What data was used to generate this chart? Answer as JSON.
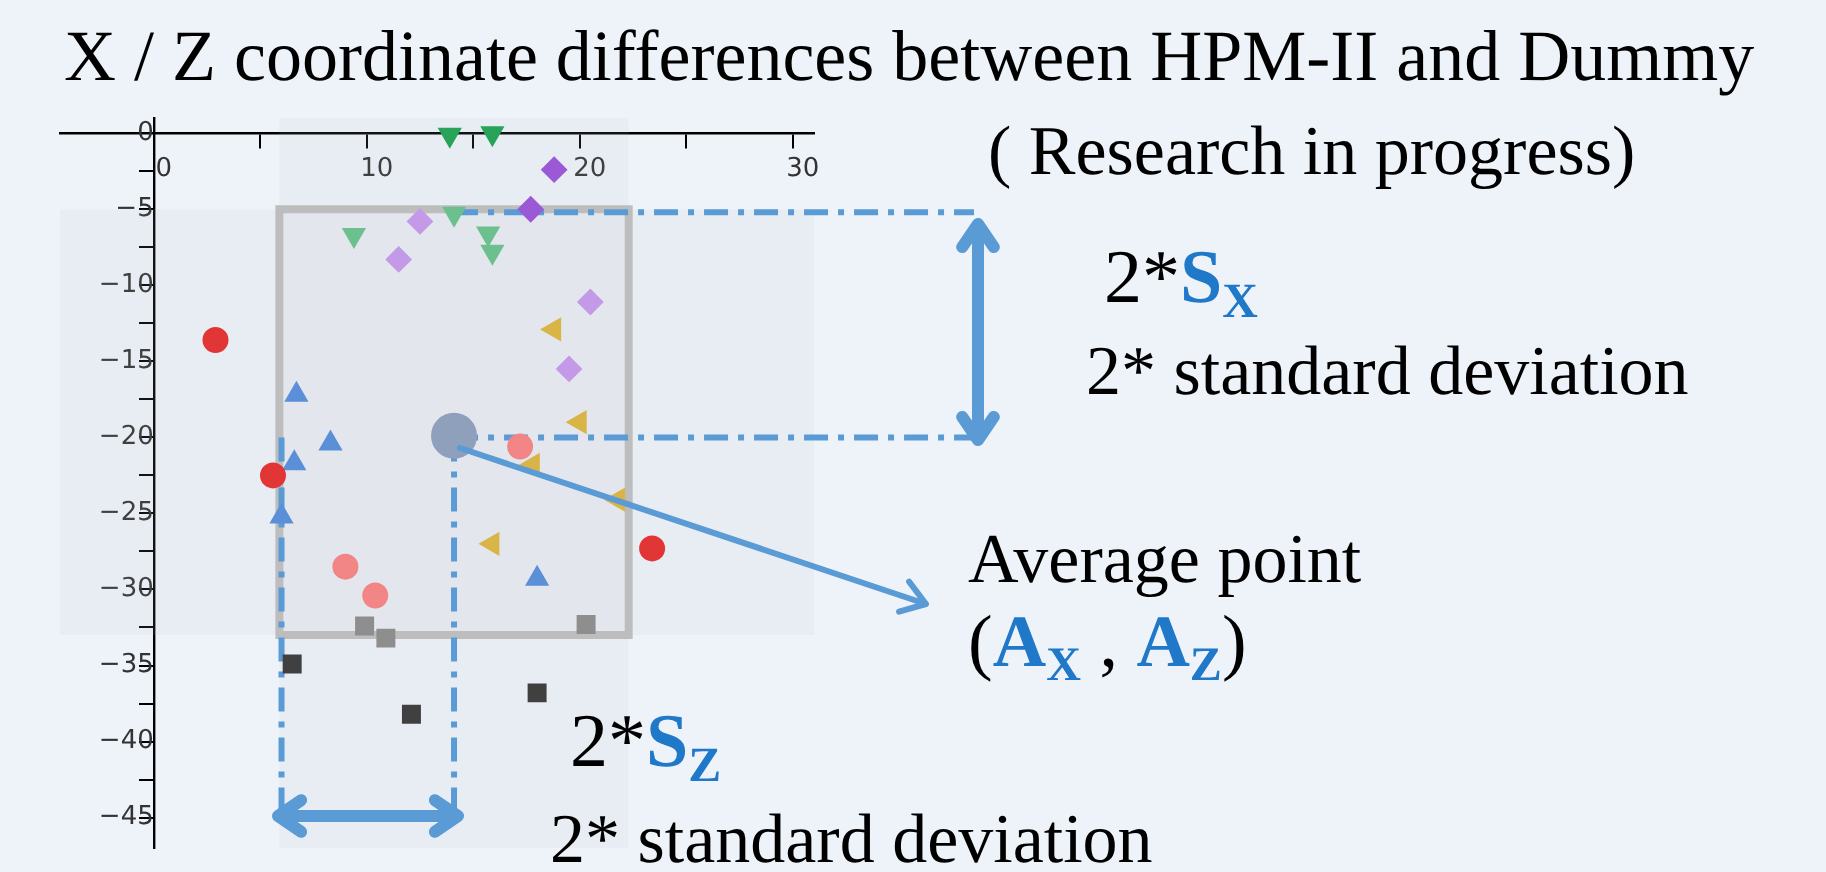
{
  "chart_data": {
    "type": "scatter",
    "title": "X / Z coordinate differences between HPM-II and Dummy",
    "subtitle": "( Research in progress)",
    "annotations": [
      "2*S$_{X}$",
      "2* standard deviation",
      "Average point",
      "(A$_{X}$ , A$_{Z}$)",
      "2*S$_{Z}$",
      "2* standard deviation"
    ],
    "series": [
      {
        "color": "#27a35a",
        "marker": "triangle_down",
        "x": [
          13.9,
          15.9
        ],
        "values": [
          -0.1,
          0
        ]
      },
      {
        "color": "#6cc08e",
        "marker": "triangle_down",
        "x": [
          14.1,
          9.4,
          15.7,
          15.9
        ],
        "values": [
          -5.3,
          -6.7,
          -6.6,
          -7.8
        ]
      },
      {
        "color": "#9b59d6",
        "marker": "diamond",
        "x": [
          18.8,
          17.7
        ],
        "values": [
          -2.4,
          -5.0
        ]
      },
      {
        "color": "#c49ae8",
        "marker": "diamond",
        "x": [
          12.5,
          11.5,
          20.5,
          19.5
        ],
        "values": [
          -5.8,
          -8.3,
          -11.1,
          -15.5
        ]
      },
      {
        "color": "#d9b447",
        "marker": "triangle_left",
        "x": [
          18.8,
          20.0,
          17.8,
          21.8,
          15.9
        ],
        "values": [
          -12.9,
          -19.0,
          -21.8,
          -24.1,
          -27.0
        ]
      },
      {
        "color": "#e23535",
        "marker": "circle",
        "x": [
          2.9,
          5.6,
          23.4
        ],
        "values": [
          -13.6,
          -22.5,
          -27.3
        ]
      },
      {
        "color": "#f28585",
        "marker": "circle",
        "x": [
          17.2,
          9.0,
          10.4
        ],
        "values": [
          -20.6,
          -28.5,
          -30.4
        ]
      },
      {
        "color": "#5b8fd8",
        "marker": "triangle",
        "x": [
          6.7,
          8.3,
          6.7,
          6.6,
          6.0,
          18.0
        ],
        "values": [
          -17.2,
          -20.4,
          null,
          -21.7,
          -25.2,
          -29.3
        ]
      },
      {
        "color": "#8e8e8e",
        "marker": "square",
        "x": [
          9.9,
          10.9,
          20.3
        ],
        "values": [
          -32.4,
          -33.2,
          -32.3
        ]
      },
      {
        "color": "#404040",
        "marker": "square",
        "x": [
          6.5,
          12.1,
          18.0
        ],
        "values": [
          -34.9,
          -38.2,
          -36.8
        ]
      },
      {
        "type": "bubble",
        "color": "#8fa0bc",
        "x": [
          14.1
        ],
        "values": [
          -19.9
        ],
        "sizes": [
          1
        ]
      }
    ],
    "xlim": [
      -4.4,
      31
    ],
    "ylim": [
      -47,
      1
    ],
    "xticks": [
      0,
      {
        "value": 5,
        "label": null
      },
      10,
      {
        "value": 15,
        "label": null
      },
      20,
      {
        "value": 25,
        "label": null
      },
      30
    ],
    "yticks": [
      {
        "value": 0,
        "label": "0"
      },
      {
        "value": -2.5,
        "label": null
      },
      {
        "value": -5,
        "label": "−5"
      },
      {
        "value": -7.5,
        "label": null
      },
      {
        "value": -10,
        "label": "−10"
      },
      {
        "value": -12.5,
        "label": null
      },
      {
        "value": -15,
        "label": "−15"
      },
      {
        "value": -17.5,
        "label": null
      },
      {
        "value": -20,
        "label": "−20"
      },
      {
        "value": -22.5,
        "label": null
      },
      {
        "value": -25,
        "label": "−25"
      },
      {
        "value": -27.5,
        "label": null
      },
      {
        "value": -30,
        "label": "−30"
      },
      {
        "value": -32.5,
        "label": null
      },
      {
        "value": -35,
        "label": "−35"
      },
      {
        "value": -37.5,
        "label": null
      },
      {
        "value": -40,
        "label": "−40"
      },
      {
        "value": -42.5,
        "label": null
      },
      {
        "value": -45,
        "label": "−45"
      }
    ],
    "ref_lines": [
      {
        "axis": "y",
        "value": -5.2,
        "color": "#5b9bd5",
        "line_style": "dashed"
      },
      {
        "axis": "y",
        "value": -20,
        "color": "#5b9bd5",
        "line_style": "dashed"
      },
      {
        "axis": "x",
        "value": 6.0,
        "color": "#5b9bd5",
        "line_style": "dashed"
      },
      {
        "axis": "x",
        "value": 14.1,
        "color": "#5b9bd5",
        "line_style": "dashed"
      }
    ],
    "bands": [
      {
        "axis": "x",
        "from": 5.9,
        "to": 22.3,
        "color": "#bdbdbd"
      },
      {
        "axis": "y",
        "from": -33,
        "to": -5,
        "color": "#bdbdbd"
      }
    ],
    "grid": false,
    "legend": false
  }
}
